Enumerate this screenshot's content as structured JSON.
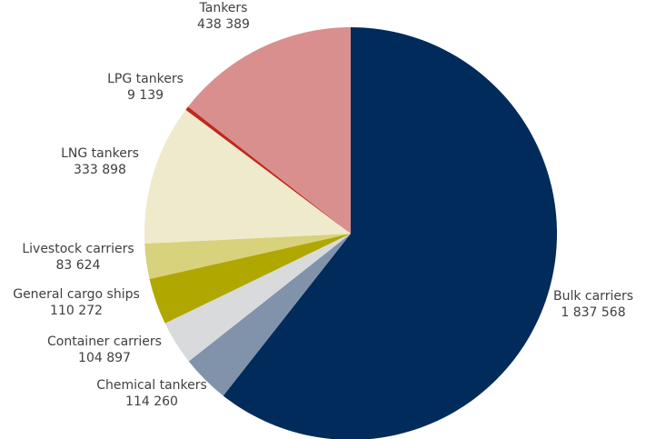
{
  "chart_data": {
    "type": "pie",
    "categories": [
      "Bulk carriers",
      "Chemical tankers",
      "Container carriers",
      "General cargo ships",
      "Livestock carriers",
      "LNG tankers",
      "LPG tankers",
      "Tankers"
    ],
    "values": [
      1837568,
      114260,
      104897,
      110272,
      83624,
      333898,
      9139,
      438389
    ],
    "value_labels": [
      "1 837 568",
      "114 260",
      "104 897",
      "110 272",
      "83 624",
      "333 898",
      "9 139",
      "438 389"
    ],
    "colors": [
      "#002b5a",
      "#8093ab",
      "#d9dadc",
      "#b0a700",
      "#d7d27b",
      "#eeeacb",
      "#c0281c",
      "#d98f8d"
    ]
  }
}
